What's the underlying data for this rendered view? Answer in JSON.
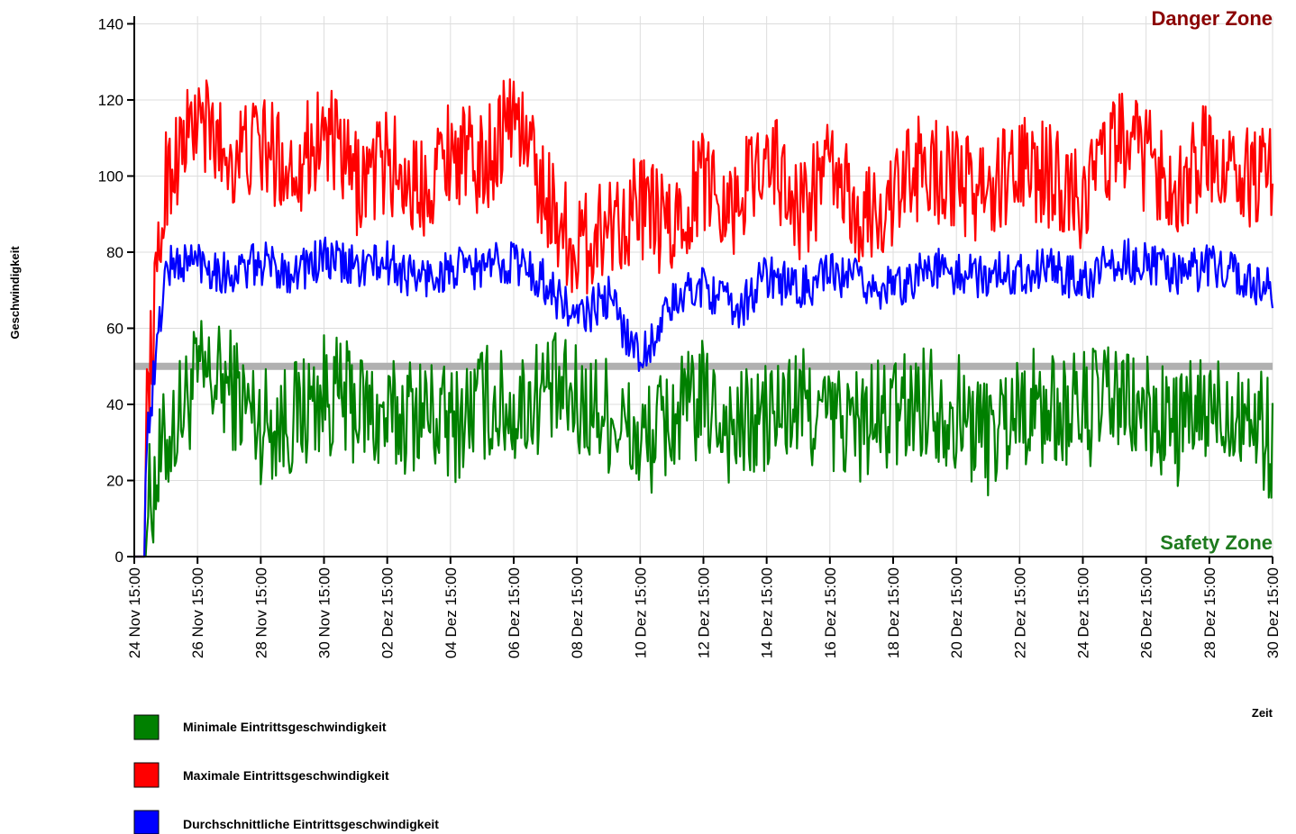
{
  "chart_data": {
    "type": "line",
    "xlabel": "Zeit",
    "ylabel": "Geschwindigkeit",
    "xlim": [
      "24 Nov 15:00",
      "30 Dez 15:00"
    ],
    "ylim": [
      0,
      142
    ],
    "yticks": [
      0,
      20,
      40,
      60,
      80,
      100,
      120,
      140
    ],
    "x_tick_labels": [
      "24 Nov 15:00",
      "26 Nov 15:00",
      "28 Nov 15:00",
      "30 Nov 15:00",
      "02 Dez 15:00",
      "04 Dez 15:00",
      "06 Dez 15:00",
      "08 Dez 15:00",
      "10 Dez 15:00",
      "12 Dez 15:00",
      "14 Dez 15:00",
      "16 Dez 15:00",
      "18 Dez 15:00",
      "20 Dez 15:00",
      "22 Dez 15:00",
      "24 Dez 15:00",
      "26 Dez 15:00",
      "28 Dez 15:00",
      "30 Dez 15:00"
    ],
    "grid": true,
    "legend_position": "bottom-left",
    "reference_line": {
      "y": 50,
      "color": "#b0b0b0"
    },
    "annotations": [
      {
        "text": "Danger Zone",
        "color": "#8b0000",
        "position": "top-right"
      },
      {
        "text": "Safety Zone",
        "color": "#1e7a1e",
        "position": "bottom-right"
      }
    ],
    "series": [
      {
        "name": "Minimale Eintrittsgeschwindigkeit",
        "color": "#008000",
        "x": [
          "24 Nov 15:00",
          "25 Nov 15:00",
          "26 Nov 15:00",
          "27 Nov 15:00",
          "28 Nov 15:00",
          "29 Nov 15:00",
          "30 Nov 15:00",
          "01 Dez 15:00",
          "02 Dez 15:00",
          "03 Dez 15:00",
          "04 Dez 15:00",
          "05 Dez 15:00",
          "06 Dez 15:00",
          "07 Dez 15:00",
          "08 Dez 15:00",
          "09 Dez 15:00",
          "10 Dez 15:00",
          "11 Dez 15:00",
          "12 Dez 15:00",
          "13 Dez 15:00",
          "14 Dez 15:00",
          "15 Dez 15:00",
          "16 Dez 15:00",
          "17 Dez 15:00",
          "18 Dez 15:00",
          "19 Dez 15:00",
          "20 Dez 15:00",
          "21 Dez 15:00",
          "22 Dez 15:00",
          "23 Dez 15:00",
          "24 Dez 15:00",
          "25 Dez 15:00",
          "26 Dez 15:00",
          "27 Dez 15:00",
          "28 Dez 15:00",
          "29 Dez 15:00",
          "30 Dez 15:00"
        ],
        "values": [
          0,
          30,
          47,
          45,
          35,
          36,
          43,
          40,
          35,
          39,
          34,
          41,
          38,
          44,
          40,
          38,
          29,
          36,
          41,
          33,
          36,
          40,
          36,
          35,
          37,
          42,
          38,
          32,
          40,
          38,
          39,
          41,
          37,
          34,
          38,
          40,
          30
        ]
      },
      {
        "name": "Maximale Eintrittsgeschwindigkeit",
        "color": "#ff0000",
        "x": [
          "24 Nov 15:00",
          "25 Nov 15:00",
          "26 Nov 15:00",
          "27 Nov 15:00",
          "28 Nov 15:00",
          "29 Nov 15:00",
          "30 Nov 15:00",
          "01 Dez 15:00",
          "02 Dez 15:00",
          "03 Dez 15:00",
          "04 Dez 15:00",
          "05 Dez 15:00",
          "06 Dez 15:00",
          "07 Dez 15:00",
          "08 Dez 15:00",
          "09 Dez 15:00",
          "10 Dez 15:00",
          "11 Dez 15:00",
          "12 Dez 15:00",
          "13 Dez 15:00",
          "14 Dez 15:00",
          "15 Dez 15:00",
          "16 Dez 15:00",
          "17 Dez 15:00",
          "18 Dez 15:00",
          "19 Dez 15:00",
          "20 Dez 15:00",
          "21 Dez 15:00",
          "22 Dez 15:00",
          "23 Dez 15:00",
          "24 Dez 15:00",
          "25 Dez 15:00",
          "26 Dez 15:00",
          "27 Dez 15:00",
          "28 Dez 15:00",
          "29 Dez 15:00",
          "30 Dez 15:00"
        ],
        "values": [
          0,
          100,
          115,
          105,
          108,
          102,
          112,
          98,
          104,
          96,
          108,
          102,
          118,
          95,
          80,
          88,
          92,
          85,
          100,
          92,
          108,
          90,
          102,
          88,
          94,
          104,
          98,
          96,
          102,
          100,
          94,
          110,
          104,
          98,
          106,
          100,
          99
        ]
      },
      {
        "name": "Durchschnittliche Eintrittsgeschwindigkeit",
        "color": "#0000ff",
        "x": [
          "24 Nov 15:00",
          "25 Nov 15:00",
          "26 Nov 15:00",
          "27 Nov 15:00",
          "28 Nov 15:00",
          "29 Nov 15:00",
          "30 Nov 15:00",
          "01 Dez 15:00",
          "02 Dez 15:00",
          "03 Dez 15:00",
          "04 Dez 15:00",
          "05 Dez 15:00",
          "06 Dez 15:00",
          "07 Dez 15:00",
          "08 Dez 15:00",
          "09 Dez 15:00",
          "10 Dez 15:00",
          "11 Dez 15:00",
          "12 Dez 15:00",
          "13 Dez 15:00",
          "14 Dez 15:00",
          "15 Dez 15:00",
          "16 Dez 15:00",
          "17 Dez 15:00",
          "18 Dez 15:00",
          "19 Dez 15:00",
          "20 Dez 15:00",
          "21 Dez 15:00",
          "22 Dez 15:00",
          "23 Dez 15:00",
          "24 Dez 15:00",
          "25 Dez 15:00",
          "26 Dez 15:00",
          "27 Dez 15:00",
          "28 Dez 15:00",
          "29 Dez 15:00",
          "30 Dez 15:00"
        ],
        "values": [
          0,
          76,
          78,
          74,
          77,
          75,
          78,
          76,
          77,
          73,
          75,
          76,
          78,
          72,
          62,
          68,
          52,
          66,
          72,
          64,
          74,
          70,
          74,
          72,
          70,
          76,
          74,
          74,
          75,
          76,
          72,
          78,
          77,
          74,
          76,
          74,
          70
        ]
      }
    ]
  }
}
